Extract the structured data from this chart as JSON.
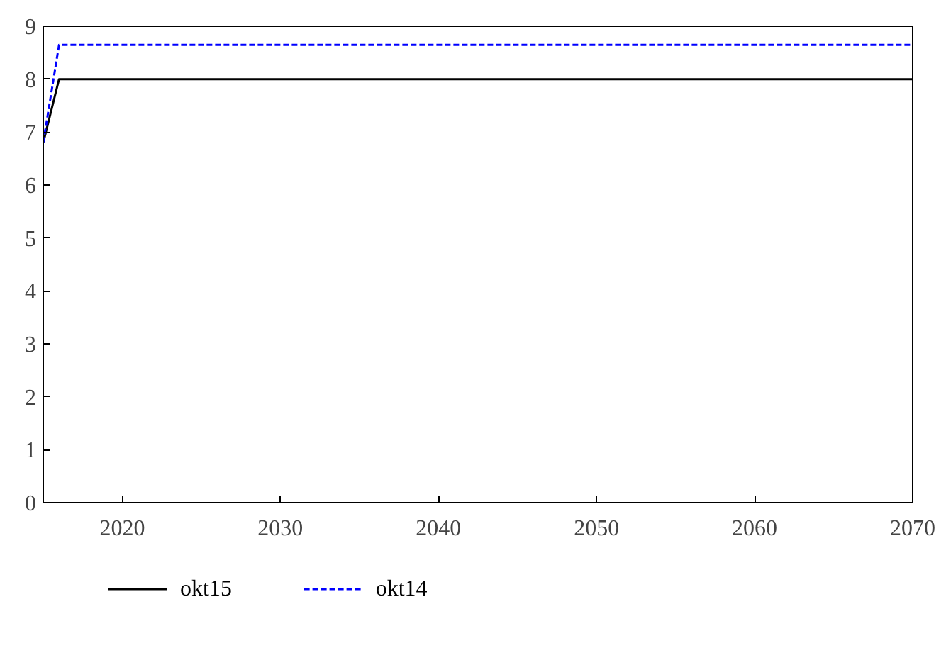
{
  "chart_data": {
    "type": "line",
    "x": [
      2015,
      2016,
      2070
    ],
    "series": [
      {
        "name": "okt15",
        "color": "#000000",
        "values": [
          6.8,
          8.0,
          8.0
        ],
        "line_style": "solid"
      },
      {
        "name": "okt14",
        "color": "#0000ff",
        "values": [
          6.8,
          8.65,
          8.65
        ],
        "line_style": "dashed"
      }
    ],
    "xlim": [
      2015,
      2070
    ],
    "xticks": [
      2020,
      2030,
      2040,
      2050,
      2060,
      2070
    ],
    "ylim": [
      0,
      9
    ],
    "yticks": [
      0,
      1,
      2,
      3,
      4,
      5,
      6,
      7,
      8,
      9
    ],
    "grid": false,
    "legend": "bottom",
    "marker": "none"
  }
}
